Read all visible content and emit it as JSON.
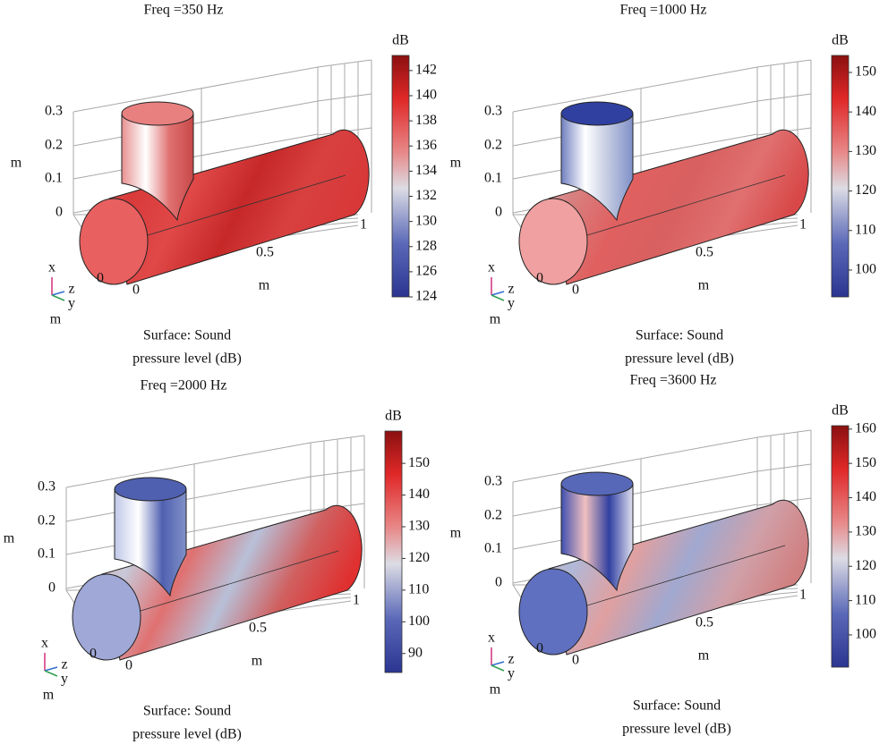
{
  "panels": [
    {
      "title": "Freq =350 Hz",
      "colorbar": {
        "label": "dB",
        "lim": [
          124,
          143.2
        ],
        "ticks": [
          124,
          126,
          128,
          130,
          132,
          134,
          136,
          138,
          140,
          142
        ]
      },
      "axes": {
        "z_label": "m",
        "z_ticks": [
          0.3,
          0.2,
          0.1,
          0
        ],
        "y_ticks": [
          1,
          0.5,
          0
        ],
        "y_label": "m",
        "x_tick": 0,
        "triad": [
          "x",
          "z",
          "y"
        ],
        "triad_unit": "m"
      },
      "caption": [
        "Surface: Sound",
        "pressure level (dB)"
      ]
    },
    {
      "title": "Freq =1000 Hz",
      "colorbar": {
        "label": "dB",
        "lim": [
          93.2,
          154.3
        ],
        "ticks": [
          100,
          110,
          120,
          130,
          140,
          150
        ]
      },
      "axes": {
        "z_label": "m",
        "z_ticks": [
          0.3,
          0.2,
          0.1,
          0
        ],
        "y_ticks": [
          1,
          0.5,
          0
        ],
        "y_label": "m",
        "x_tick": 0,
        "triad": [
          "x",
          "z",
          "y"
        ],
        "triad_unit": "m"
      },
      "caption": [
        "Surface: Sound",
        "pressure level (dB)"
      ]
    },
    {
      "title": "Freq =2000 Hz",
      "colorbar": {
        "label": "dB",
        "lim": [
          84,
          160.2
        ],
        "ticks": [
          90,
          100,
          110,
          120,
          130,
          140,
          150
        ]
      },
      "axes": {
        "z_label": "m",
        "z_ticks": [
          0.3,
          0.2,
          0.1,
          0
        ],
        "y_ticks": [
          1,
          0.5,
          0
        ],
        "y_label": "m",
        "x_tick": 0,
        "triad": [
          "x",
          "z",
          "y"
        ],
        "triad_unit": "m"
      },
      "caption": [
        "Surface: Sound",
        "pressure level (dB)"
      ]
    },
    {
      "title": "Freq =3600 Hz",
      "colorbar": {
        "label": "dB",
        "lim": [
          90.6,
          161
        ],
        "ticks": [
          100,
          110,
          120,
          130,
          140,
          150,
          160
        ]
      },
      "axes": {
        "z_label": "m",
        "z_ticks": [
          0.3,
          0.2,
          0.1,
          0
        ],
        "y_ticks": [
          1,
          0.5,
          0
        ],
        "y_label": "m",
        "x_tick": 0,
        "triad": [
          "x",
          "z",
          "y"
        ],
        "triad_unit": "m"
      },
      "caption": [
        "Surface: Sound",
        "pressure level (dB)"
      ]
    }
  ]
}
